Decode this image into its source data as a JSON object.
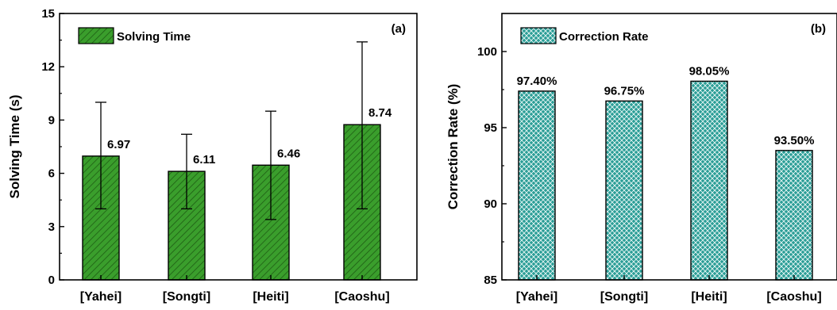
{
  "chart_data": [
    {
      "type": "bar",
      "panel_label": "(a)",
      "categories": [
        "[Yahei]",
        "[Songti]",
        "[Heiti]",
        "[Caoshu]"
      ],
      "series": [
        {
          "name": "Solving Time",
          "values": [
            6.97,
            6.11,
            6.46,
            8.74
          ],
          "error_low": [
            4.0,
            4.0,
            3.4,
            4.0
          ],
          "error_high": [
            10.0,
            8.2,
            9.5,
            13.4
          ]
        }
      ],
      "value_labels": [
        "6.97",
        "6.11",
        "6.46",
        "8.74"
      ],
      "xlabel": "",
      "ylabel": "Solving Time (s)",
      "ylim": [
        0,
        15
      ],
      "yticks": [
        0,
        3,
        6,
        9,
        12,
        15
      ],
      "legend_position": "top-left",
      "grid": false,
      "colors": {
        "bar_fill": "#3a9e2c",
        "bar_hatch": "#1e5c14"
      }
    },
    {
      "type": "bar",
      "panel_label": "(b)",
      "categories": [
        "[Yahei]",
        "[Songti]",
        "[Heiti]",
        "[Caoshu]"
      ],
      "series": [
        {
          "name": "Correction Rate",
          "values": [
            97.4,
            96.75,
            98.05,
            93.5
          ]
        }
      ],
      "value_labels": [
        "97.40%",
        "96.75%",
        "98.05%",
        "93.50%"
      ],
      "xlabel": "",
      "ylabel": "Correction Rate (%)",
      "ylim": [
        85,
        102.5
      ],
      "yticks": [
        85,
        90,
        95,
        100
      ],
      "legend_position": "top-left",
      "grid": false,
      "colors": {
        "bar_fill": "#2a9d96",
        "bar_hatch": "#0d4f4b"
      }
    }
  ]
}
